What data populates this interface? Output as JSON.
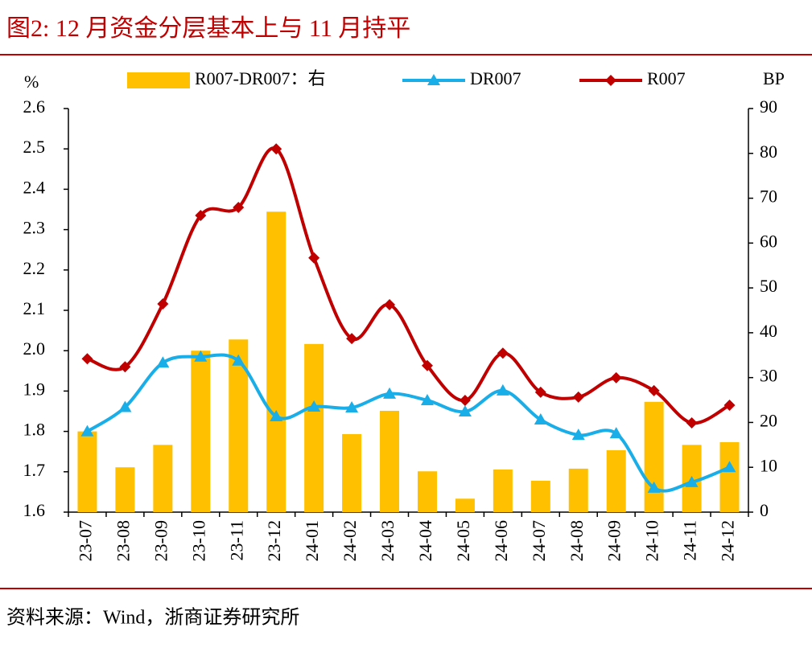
{
  "chart_data": {
    "type": "bar-line",
    "title": "图2:  12 月资金分层基本上与 11 月持平",
    "source": "资料来源：Wind，浙商证券研究所",
    "ylabel": "%",
    "y2label": "BP",
    "categories": [
      "23-07",
      "23-08",
      "23-09",
      "23-10",
      "23-11",
      "23-12",
      "24-01",
      "24-02",
      "24-03",
      "24-04",
      "24-05",
      "24-06",
      "24-07",
      "24-08",
      "24-09",
      "24-10",
      "24-11",
      "24-12"
    ],
    "series": [
      {
        "name": "R007-DR007：右",
        "type": "bar",
        "axis": "y2",
        "color": "#FFC000",
        "values": [
          18,
          10,
          15,
          36,
          38.5,
          67,
          37.5,
          17.4,
          22.6,
          9.1,
          3,
          9.5,
          7,
          9.7,
          13.8,
          24.6,
          15,
          15.6
        ]
      },
      {
        "name": "DR007",
        "type": "line",
        "axis": "y",
        "color": "#1AAEE8",
        "marker": "triangle",
        "values": [
          1.8,
          1.86,
          1.97,
          1.985,
          1.975,
          1.837,
          1.861,
          1.859,
          1.893,
          1.877,
          1.849,
          1.901,
          1.829,
          1.791,
          1.795,
          1.66,
          1.674,
          1.711
        ]
      },
      {
        "name": "R007",
        "type": "line",
        "axis": "y",
        "color": "#C00000",
        "marker": "diamond",
        "values": [
          1.98,
          1.96,
          2.116,
          2.335,
          2.355,
          2.5,
          2.23,
          2.03,
          2.114,
          1.963,
          1.877,
          1.994,
          1.897,
          1.885,
          1.933,
          1.901,
          1.821,
          1.865
        ]
      }
    ],
    "ylim": [
      1.6,
      2.6
    ],
    "yticks": [
      1.6,
      1.7,
      1.8,
      1.9,
      {
        "value": 2,
        "label": "2.0"
      },
      2.1,
      2.2,
      2.3,
      2.4,
      2.5,
      2.6
    ],
    "y2lim": [
      0,
      90
    ],
    "y2ticks": [
      0,
      10,
      20,
      30,
      40,
      50,
      60,
      70,
      80,
      90
    ]
  }
}
